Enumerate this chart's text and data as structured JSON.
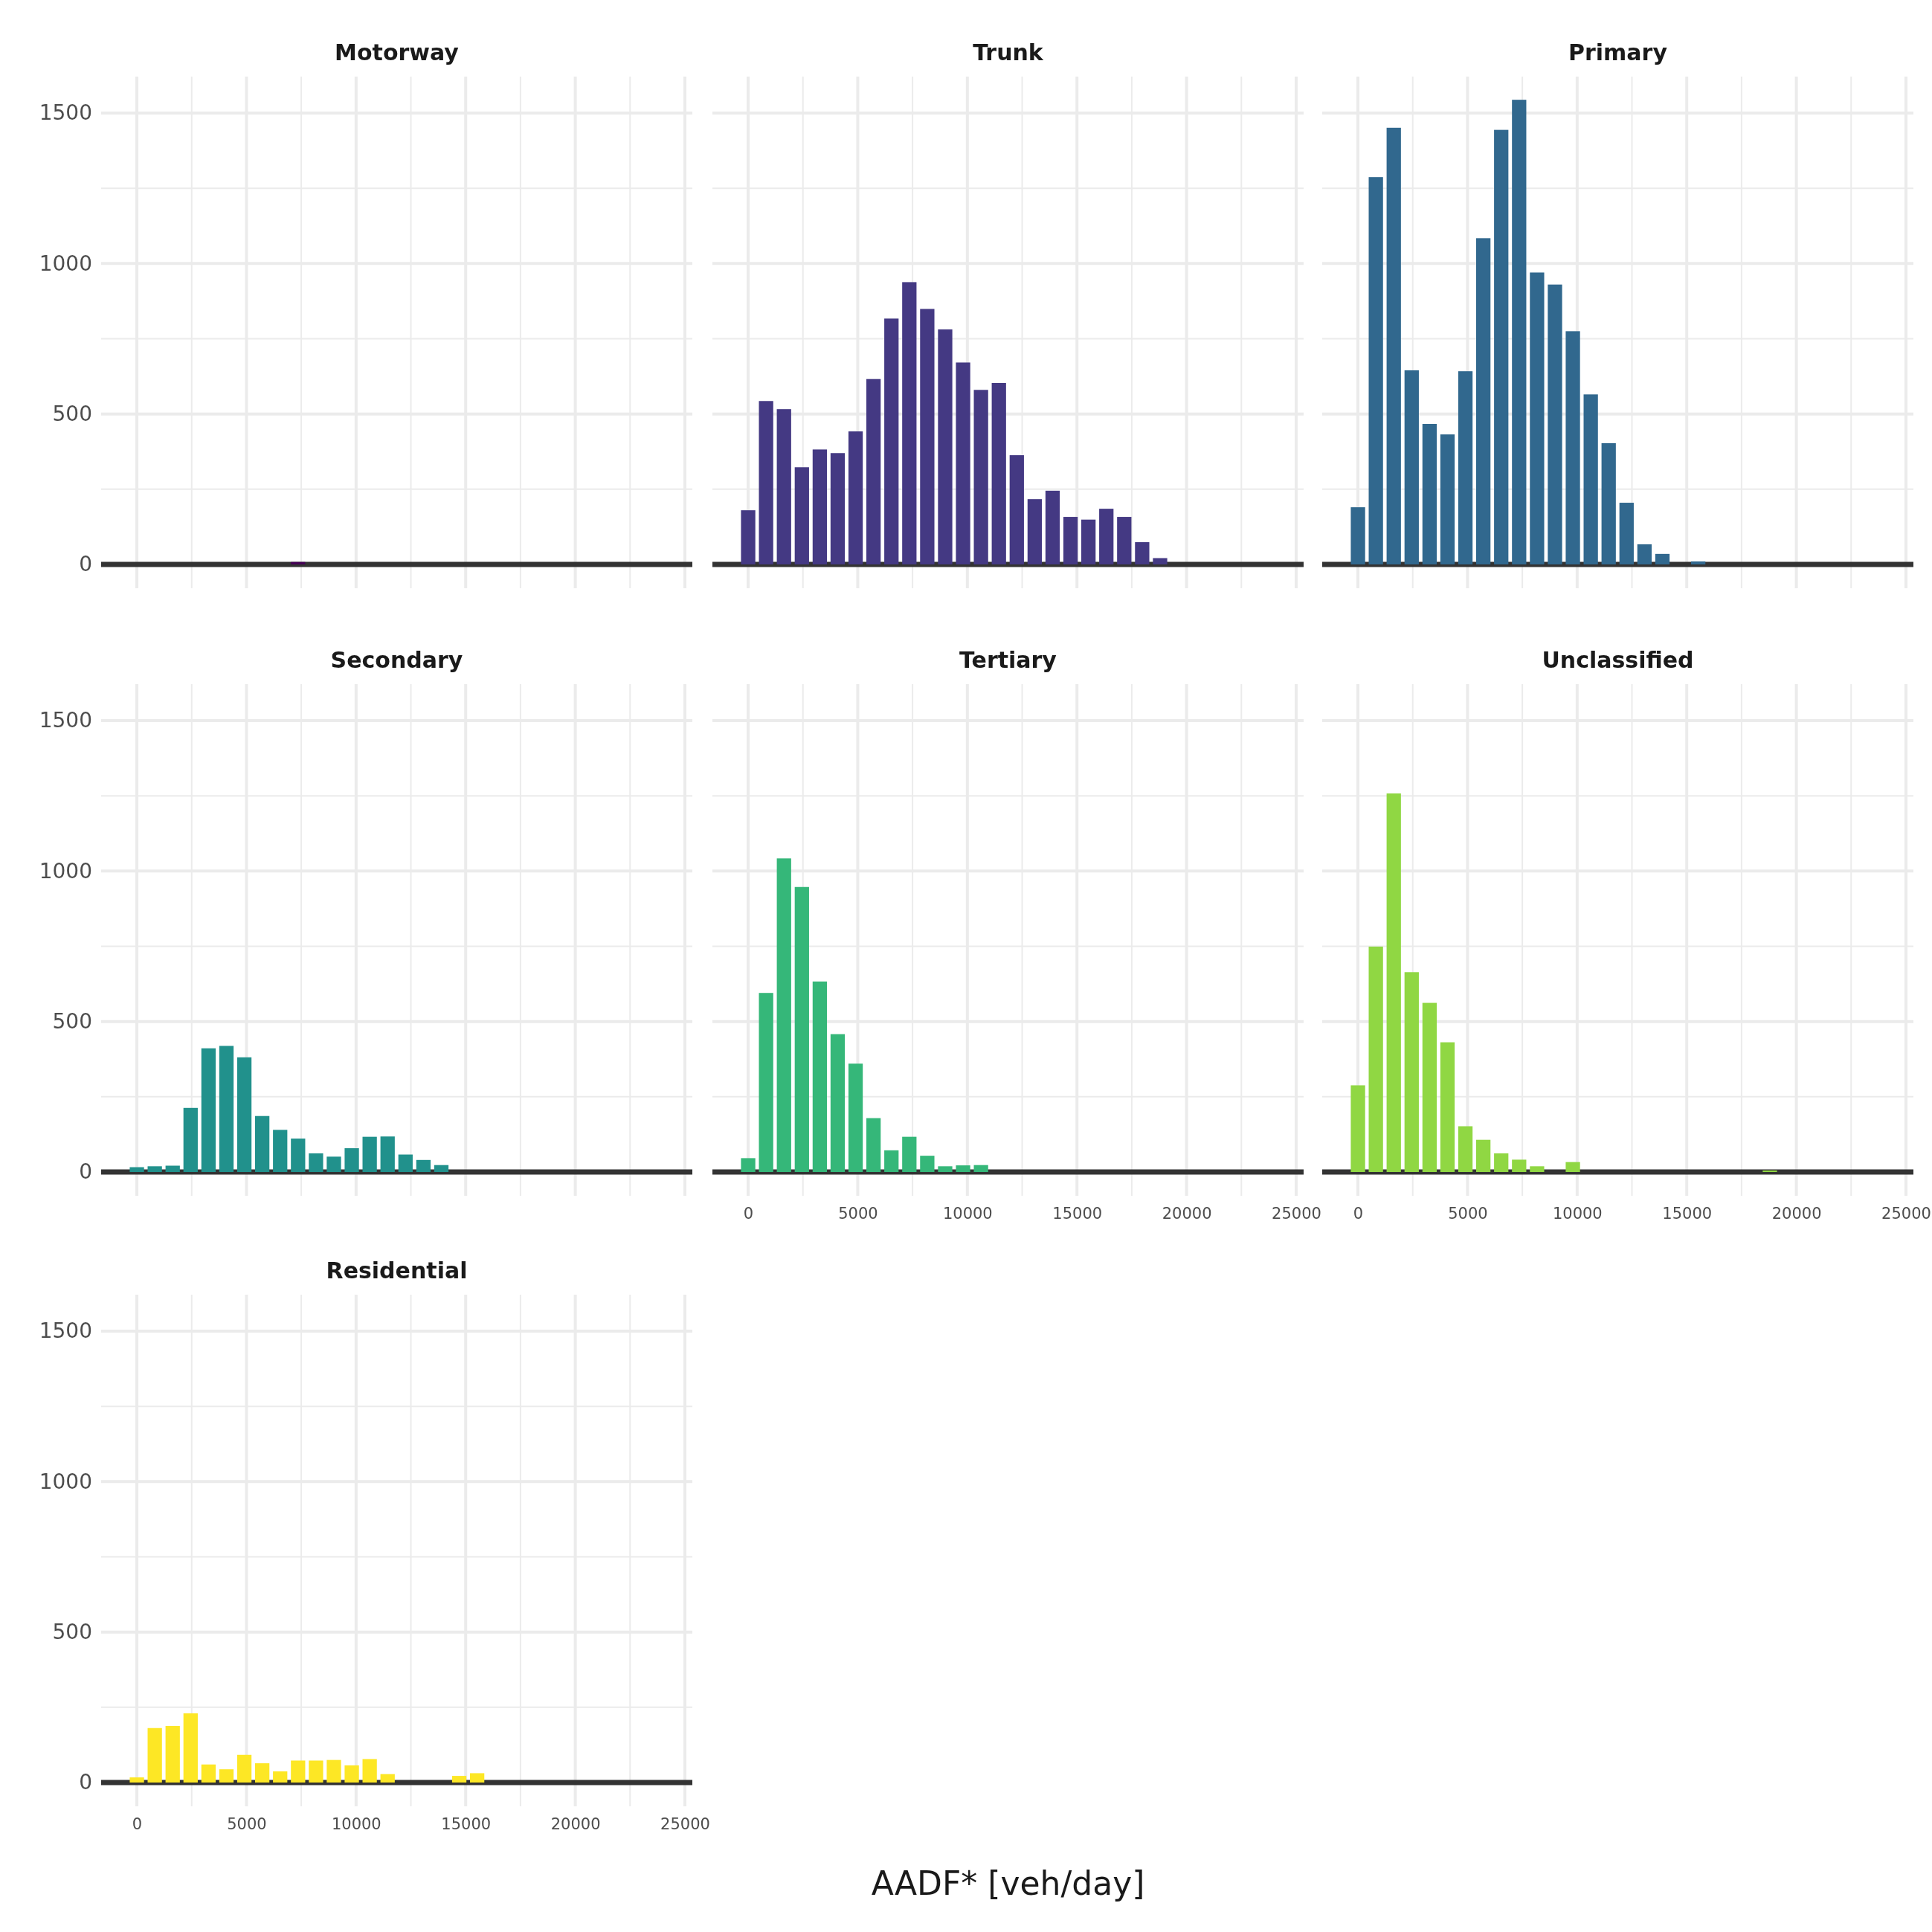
{
  "chart_data": [
    {
      "type": "histogram",
      "title": "Motorway",
      "color": "#440154",
      "bins": [
        -408,
        409,
        1226,
        2043,
        2860,
        3677,
        4494,
        5311,
        6128,
        6945,
        7762,
        8579,
        9396,
        10213,
        11030,
        11847,
        12664,
        13481,
        14298,
        15115,
        15932,
        16749,
        17566,
        18383,
        19200
      ],
      "values": [
        0,
        0,
        0,
        0,
        0,
        0,
        0,
        0,
        0,
        8,
        0,
        0,
        0,
        0,
        0,
        0,
        0,
        0,
        0,
        0,
        0,
        0,
        0,
        0
      ],
      "xlim": [
        -1630,
        25340
      ],
      "ylim": [
        0,
        1621
      ],
      "xticks": [
        0,
        {
          "value": 2500,
          "label": null
        },
        5000,
        {
          "value": 7500,
          "label": null
        },
        10000,
        {
          "value": 12500,
          "label": null
        },
        15000,
        {
          "value": 17500,
          "label": null
        },
        20000,
        {
          "value": 22500,
          "label": null
        },
        25000
      ],
      "yticks": [
        0,
        {
          "value": 250,
          "label": null
        },
        500,
        {
          "value": 750,
          "label": null
        },
        1000,
        {
          "value": 1250,
          "label": null
        },
        1500
      ],
      "grid": true,
      "tick_labels": "y"
    },
    {
      "type": "histogram",
      "title": "Trunk",
      "color": "#443983",
      "bins": [
        -408,
        409,
        1226,
        2043,
        2860,
        3677,
        4494,
        5311,
        6128,
        6945,
        7762,
        8579,
        9396,
        10213,
        11030,
        11847,
        12664,
        13481,
        14298,
        15115,
        15932,
        16749,
        17566,
        18383,
        19200
      ],
      "values": [
        180,
        543,
        516,
        323,
        382,
        370,
        442,
        616,
        817,
        938,
        849,
        781,
        671,
        580,
        603,
        363,
        217,
        245,
        158,
        149,
        185,
        158,
        74,
        21
      ],
      "xlim": [
        -1630,
        25340
      ],
      "ylim": [
        0,
        1621
      ],
      "xticks": [
        0,
        {
          "value": 2500,
          "label": null
        },
        5000,
        {
          "value": 7500,
          "label": null
        },
        10000,
        {
          "value": 12500,
          "label": null
        },
        15000,
        {
          "value": 17500,
          "label": null
        },
        20000,
        {
          "value": 22500,
          "label": null
        },
        25000
      ],
      "yticks": [
        0,
        {
          "value": 250,
          "label": null
        },
        500,
        {
          "value": 750,
          "label": null
        },
        1000,
        {
          "value": 1250,
          "label": null
        },
        1500
      ],
      "grid": true,
      "tick_labels": false
    },
    {
      "type": "histogram",
      "title": "Primary",
      "color": "#31688e",
      "bins": [
        -408,
        409,
        1226,
        2043,
        2860,
        3677,
        4494,
        5311,
        6128,
        6945,
        7762,
        8579,
        9396,
        10213,
        11030,
        11847,
        12664,
        13481,
        14298,
        15115,
        15932,
        16749,
        17566,
        18383,
        19200
      ],
      "values": [
        190,
        1287,
        1451,
        645,
        467,
        432,
        642,
        1084,
        1444,
        1544,
        970,
        930,
        775,
        565,
        403,
        205,
        67,
        35,
        0,
        10,
        0,
        0,
        0,
        0
      ],
      "xlim": [
        -1630,
        25340
      ],
      "ylim": [
        0,
        1621
      ],
      "xticks": [
        0,
        {
          "value": 2500,
          "label": null
        },
        5000,
        {
          "value": 7500,
          "label": null
        },
        10000,
        {
          "value": 12500,
          "label": null
        },
        15000,
        {
          "value": 17500,
          "label": null
        },
        20000,
        {
          "value": 22500,
          "label": null
        },
        25000
      ],
      "yticks": [
        0,
        {
          "value": 250,
          "label": null
        },
        500,
        {
          "value": 750,
          "label": null
        },
        1000,
        {
          "value": 1250,
          "label": null
        },
        1500
      ],
      "grid": true,
      "tick_labels": false
    },
    {
      "type": "histogram",
      "title": "Secondary",
      "color": "#21918c",
      "bins": [
        -408,
        409,
        1226,
        2043,
        2860,
        3677,
        4494,
        5311,
        6128,
        6945,
        7762,
        8579,
        9396,
        10213,
        11030,
        11847,
        12664,
        13481,
        14298,
        15115,
        15932,
        16749,
        17566,
        18383,
        19200
      ],
      "values": [
        16,
        19,
        21,
        213,
        411,
        419,
        381,
        186,
        140,
        111,
        62,
        51,
        79,
        117,
        118,
        58,
        40,
        23,
        0,
        0,
        0,
        0,
        0,
        0
      ],
      "xlim": [
        -1630,
        25340
      ],
      "ylim": [
        0,
        1621
      ],
      "xticks": [
        0,
        {
          "value": 2500,
          "label": null
        },
        5000,
        {
          "value": 7500,
          "label": null
        },
        10000,
        {
          "value": 12500,
          "label": null
        },
        15000,
        {
          "value": 17500,
          "label": null
        },
        20000,
        {
          "value": 22500,
          "label": null
        },
        25000
      ],
      "yticks": [
        0,
        {
          "value": 250,
          "label": null
        },
        500,
        {
          "value": 750,
          "label": null
        },
        1000,
        {
          "value": 1250,
          "label": null
        },
        1500
      ],
      "grid": true,
      "tick_labels": "y"
    },
    {
      "type": "histogram",
      "title": "Tertiary",
      "xlabel": "AADF* [veh/day]",
      "color": "#35b779",
      "bins": [
        -408,
        409,
        1226,
        2043,
        2860,
        3677,
        4494,
        5311,
        6128,
        6945,
        7762,
        8579,
        9396,
        10213,
        11030,
        11847,
        12664,
        13481,
        14298,
        15115,
        15932,
        16749,
        17566,
        18383,
        19200
      ],
      "values": [
        46,
        595,
        1042,
        947,
        633,
        458,
        360,
        179,
        72,
        117,
        54,
        19,
        22,
        23,
        0,
        0,
        0,
        0,
        0,
        0,
        0,
        0,
        0,
        0
      ],
      "xlim": [
        -1630,
        25340
      ],
      "ylim": [
        0,
        1621
      ],
      "xticks": [
        0,
        {
          "value": 2500,
          "label": null
        },
        5000,
        {
          "value": 7500,
          "label": null
        },
        10000,
        {
          "value": 12500,
          "label": null
        },
        15000,
        {
          "value": 17500,
          "label": null
        },
        20000,
        {
          "value": 22500,
          "label": null
        },
        25000
      ],
      "yticks": [
        0,
        {
          "value": 250,
          "label": null
        },
        500,
        {
          "value": 750,
          "label": null
        },
        1000,
        {
          "value": 1250,
          "label": null
        },
        1500
      ],
      "grid": true,
      "tick_labels": "x"
    },
    {
      "type": "histogram",
      "title": "Unclassified",
      "color": "#90d743",
      "bins": [
        -408,
        409,
        1226,
        2043,
        2860,
        3677,
        4494,
        5311,
        6128,
        6945,
        7762,
        8579,
        9396,
        10213,
        11030,
        11847,
        12664,
        13481,
        14298,
        15115,
        15932,
        16749,
        17566,
        18383,
        19200
      ],
      "values": [
        288,
        749,
        1258,
        664,
        562,
        431,
        152,
        107,
        62,
        41,
        19,
        0,
        33,
        0,
        0,
        0,
        0,
        0,
        0,
        0,
        0,
        0,
        0,
        5
      ],
      "xlim": [
        -1630,
        25340
      ],
      "ylim": [
        0,
        1621
      ],
      "xticks": [
        0,
        {
          "value": 2500,
          "label": null
        },
        5000,
        {
          "value": 7500,
          "label": null
        },
        10000,
        {
          "value": 12500,
          "label": null
        },
        15000,
        {
          "value": 17500,
          "label": null
        },
        20000,
        {
          "value": 22500,
          "label": null
        },
        25000
      ],
      "yticks": [
        0,
        {
          "value": 250,
          "label": null
        },
        500,
        {
          "value": 750,
          "label": null
        },
        1000,
        {
          "value": 1250,
          "label": null
        },
        1500
      ],
      "grid": true,
      "tick_labels": "x"
    },
    {
      "type": "histogram",
      "title": "Residential",
      "color": "#fde725",
      "bins": [
        -408,
        409,
        1226,
        2043,
        2860,
        3677,
        4494,
        5311,
        6128,
        6945,
        7762,
        8579,
        9396,
        10213,
        11030,
        11847,
        12664,
        13481,
        14298,
        15115,
        15932,
        16749,
        17566,
        18383,
        19200
      ],
      "values": [
        17,
        181,
        188,
        230,
        60,
        44,
        92,
        64,
        37,
        73,
        73,
        75,
        57,
        78,
        28,
        0,
        0,
        0,
        22,
        31,
        0,
        0,
        0,
        0
      ],
      "xlim": [
        -1630,
        25340
      ],
      "ylim": [
        0,
        1621
      ],
      "xticks": [
        0,
        {
          "value": 2500,
          "label": null
        },
        5000,
        {
          "value": 7500,
          "label": null
        },
        10000,
        {
          "value": 12500,
          "label": null
        },
        15000,
        {
          "value": 17500,
          "label": null
        },
        20000,
        {
          "value": 22500,
          "label": null
        },
        25000
      ],
      "yticks": [
        0,
        {
          "value": 250,
          "label": null
        },
        500,
        {
          "value": 750,
          "label": null
        },
        1000,
        {
          "value": 1250,
          "label": null
        },
        1500
      ],
      "grid": true
    }
  ]
}
